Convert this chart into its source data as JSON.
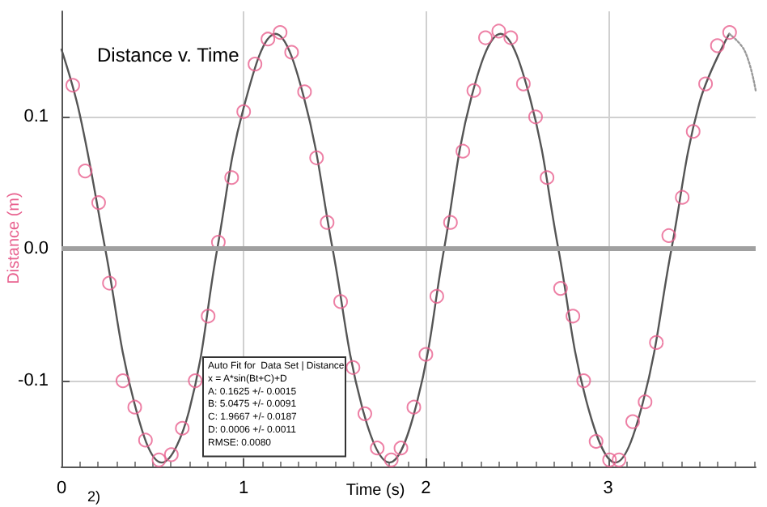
{
  "chart_data": {
    "type": "scatter",
    "title": "Distance v. Time",
    "xlabel": "Time (s)",
    "ylabel": "Distance (m)",
    "annotations": [
      "2)",
      "Auto Fit for  Data Set | Distance",
      "x = A*sin(Bt+C)+D",
      "A: 0.1625 +/- 0.0015",
      "B: 5.0475 +/- 0.0091",
      "C: 1.9667 +/- 0.0187",
      "D: 0.0006 +/- 0.0011",
      "RMSE: 0.0080"
    ],
    "xlim": [
      0,
      3.81
    ],
    "xticks": [
      0,
      1,
      2,
      3
    ],
    "ylim": [
      -0.165,
      0.18
    ],
    "yticks": [
      -0.1,
      {
        "value": 0,
        "label": "0.0"
      },
      0.1
    ],
    "grid": true,
    "ref_lines": [
      {
        "axis": "y",
        "value": 0,
        "label": null,
        "color": "#a0a0a0"
      }
    ],
    "series": [
      {
        "color": "#e8608e",
        "marker": "circle",
        "x": [
          0.062,
          0.13,
          0.204,
          0.263,
          0.337,
          0.402,
          0.461,
          0.535,
          0.603,
          0.663,
          0.734,
          0.805,
          0.861,
          0.934,
          1.0,
          1.062,
          1.133,
          1.2,
          1.263,
          1.334,
          1.4,
          1.458,
          1.532,
          1.6,
          1.665,
          1.733,
          1.81,
          1.863,
          1.934,
          2.0,
          2.06,
          2.135,
          2.203,
          2.263,
          2.327,
          2.4,
          2.466,
          2.535,
          2.602,
          2.665,
          2.739,
          2.807,
          2.866,
          2.934,
          3.008,
          3.06,
          3.135,
          3.203,
          3.265,
          3.333,
          3.407,
          3.467,
          3.535,
          3.6,
          3.667
        ],
        "values": [
          0.124,
          0.059,
          0.035,
          -0.026,
          -0.1,
          -0.12,
          -0.145,
          -0.16,
          -0.156,
          -0.136,
          -0.1,
          -0.051,
          0.005,
          0.054,
          0.104,
          0.14,
          0.159,
          0.164,
          0.149,
          0.119,
          0.069,
          0.02,
          -0.04,
          -0.09,
          -0.125,
          -0.151,
          -0.16,
          -0.151,
          -0.12,
          -0.08,
          -0.036,
          0.02,
          0.074,
          0.12,
          0.16,
          0.165,
          0.16,
          0.125,
          0.1,
          0.054,
          -0.03,
          -0.051,
          -0.1,
          -0.146,
          -0.16,
          -0.16,
          -0.131,
          -0.116,
          -0.071,
          0.01,
          0.039,
          0.089,
          0.125,
          0.154,
          0.164
        ]
      },
      {
        "type": "line",
        "color": "#555555",
        "marker": "none",
        "line_style": "solid",
        "x": [
          0,
          0.1,
          0.24,
          0.4,
          0.55,
          0.7,
          0.855,
          1.0,
          1.175,
          1.33,
          1.488,
          1.65,
          1.8,
          1.95,
          2.1,
          2.25,
          2.41,
          2.57,
          2.727,
          2.88,
          3.04,
          3.19,
          3.348,
          3.5,
          3.665
        ],
        "values": [
          0.151,
          0.102,
          0,
          -0.117,
          -0.162,
          -0.123,
          0,
          0.107,
          0.163,
          0.115,
          0,
          -0.12,
          -0.162,
          -0.117,
          0,
          0.115,
          0.163,
          0.115,
          0,
          -0.115,
          -0.162,
          -0.117,
          0,
          0.11,
          0.163
        ]
      },
      {
        "type": "line",
        "color": "#999999",
        "marker": "none",
        "line_style": "dotted",
        "x": [
          3.665,
          3.75,
          3.81
        ],
        "values": [
          0.163,
          0.15,
          0.12
        ]
      }
    ]
  }
}
